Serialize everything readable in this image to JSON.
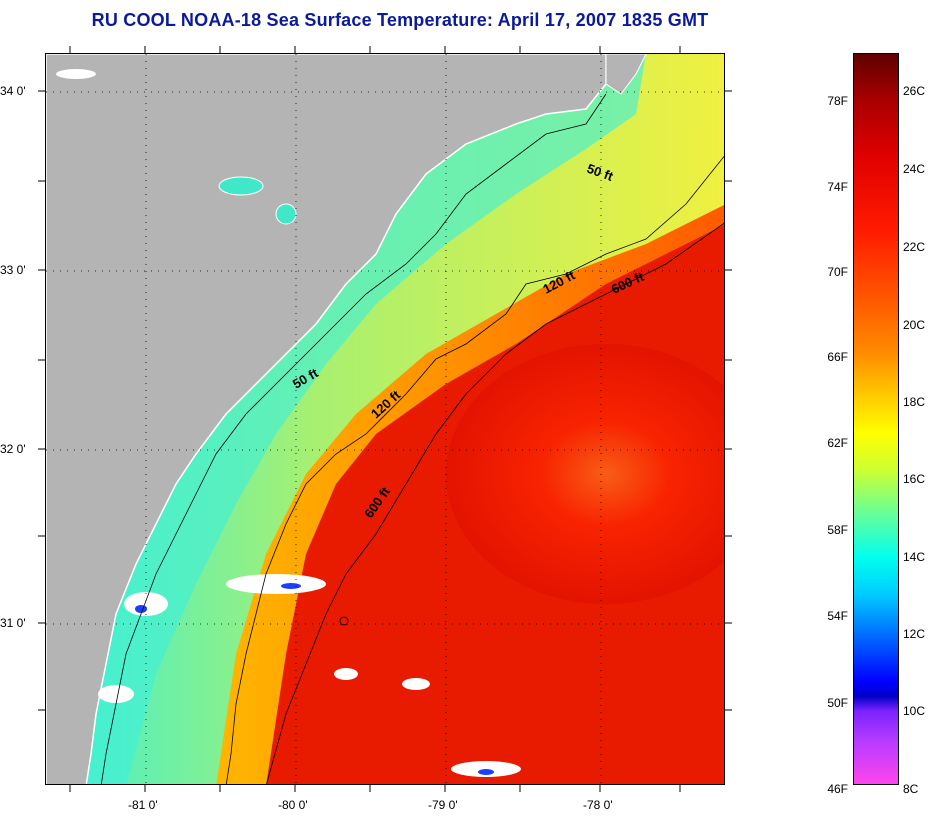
{
  "title": "RU COOL  NOAA-18  Sea Surface Temperature:  April 17, 2007 1835 GMT",
  "latitude_labels": [
    "34 0'",
    "33 0'",
    "32 0'",
    "31 0'"
  ],
  "longitude_labels": [
    "-81 0'",
    "-80 0'",
    "-79 0'",
    "-78 0'"
  ],
  "isobath_labels": [
    "50 ft",
    "120 ft",
    "600 ft",
    "50 ft",
    "120 ft",
    "600 ft"
  ],
  "colorbar": {
    "fahrenheit_labels": [
      "78F",
      "74F",
      "70F",
      "66F",
      "62F",
      "58F",
      "54F",
      "50F",
      "46F"
    ],
    "celsius_labels": [
      "26C",
      "24C",
      "22C",
      "20C",
      "18C",
      "16C",
      "14C",
      "12C",
      "10C",
      "8C"
    ]
  },
  "colors": {
    "land": "#b4b4b4",
    "title": "#0a1a9c",
    "warm": "#e81800",
    "cool": "#30f0d8"
  }
}
